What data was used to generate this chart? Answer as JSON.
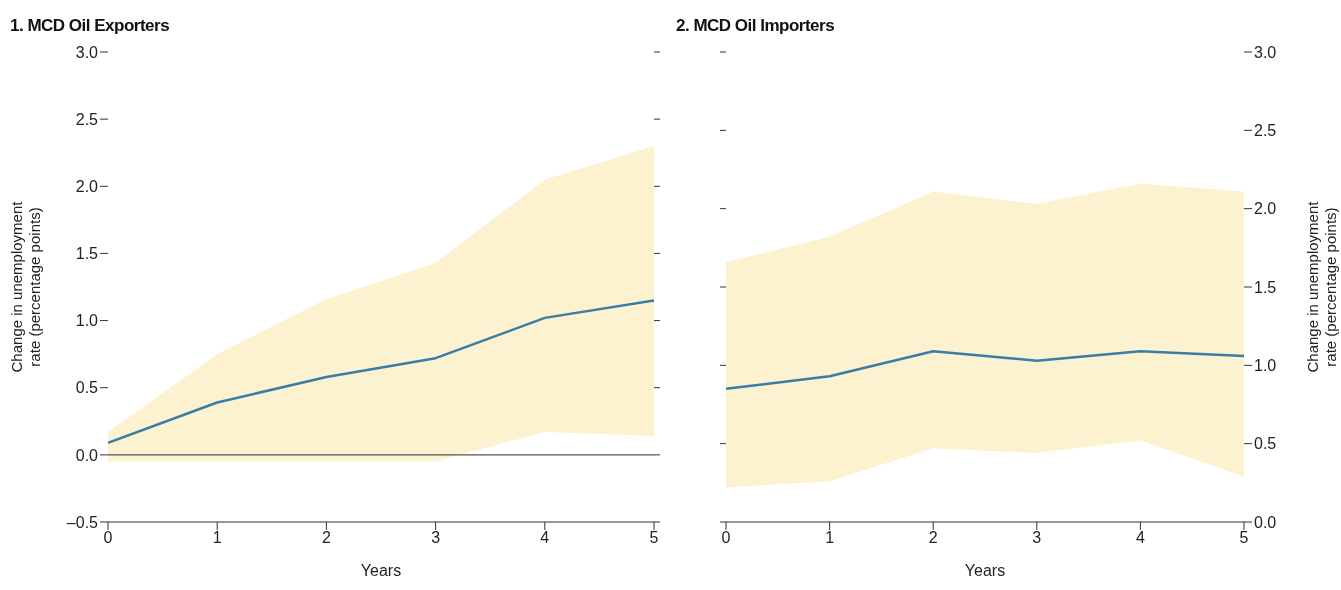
{
  "chart_data": [
    {
      "type": "line",
      "title": "1. MCD Oil Exporters",
      "xlabel": "Years",
      "ylabel": "Change in unemployment rate (percentage points)",
      "x": [
        0,
        1,
        2,
        3,
        4,
        5
      ],
      "xlim": [
        0,
        5
      ],
      "xticks": [
        0,
        1,
        2,
        3,
        4,
        5
      ],
      "ylim": [
        -0.5,
        3
      ],
      "yticks": [
        {
          "value": -0.5,
          "label": "–0.5"
        },
        {
          "value": 0,
          "label": "0.0"
        },
        0.5,
        {
          "value": 1,
          "label": "1.0"
        },
        1.5,
        {
          "value": 2,
          "label": "2.0"
        },
        2.5,
        {
          "value": 3,
          "label": "3.0"
        }
      ],
      "ref_lines": [
        {
          "axis": "y",
          "value": 0,
          "color": "#555555"
        }
      ],
      "grid": false,
      "legend": false,
      "series": [
        {
          "color": "#3a7ca5",
          "values": [
            0.09,
            0.39,
            0.58,
            0.72,
            1.02,
            1.15
          ],
          "lower": [
            -0.05,
            -0.05,
            -0.05,
            -0.05,
            0.17,
            0.14
          ],
          "upper": [
            0.17,
            0.75,
            1.16,
            1.43,
            2.05,
            2.3
          ]
        }
      ]
    },
    {
      "type": "line",
      "title": "2. MCD Oil Importers",
      "xlabel": "Years",
      "y2label": "Change in unemployment rate (percentage points)",
      "x": [
        0,
        1,
        2,
        3,
        4,
        5
      ],
      "xlim": [
        0,
        5
      ],
      "xticks": [
        0,
        1,
        2,
        3,
        4,
        5
      ],
      "y2lim": [
        0,
        3
      ],
      "y2ticks": [
        {
          "value": 0,
          "label": "0.0"
        },
        0.5,
        {
          "value": 1,
          "label": "1.0"
        },
        1.5,
        {
          "value": 2,
          "label": "2.0"
        },
        2.5,
        {
          "value": 3,
          "label": "3.0"
        }
      ],
      "grid": false,
      "legend": false,
      "series": [
        {
          "axis": "y2",
          "color": "#3a7ca5",
          "values": [
            0.85,
            0.93,
            1.09,
            1.03,
            1.09,
            1.06
          ],
          "lower": [
            0.22,
            0.26,
            0.47,
            0.44,
            0.52,
            0.29
          ],
          "upper": [
            1.66,
            1.82,
            2.11,
            2.03,
            2.16,
            2.11
          ]
        }
      ]
    }
  ]
}
